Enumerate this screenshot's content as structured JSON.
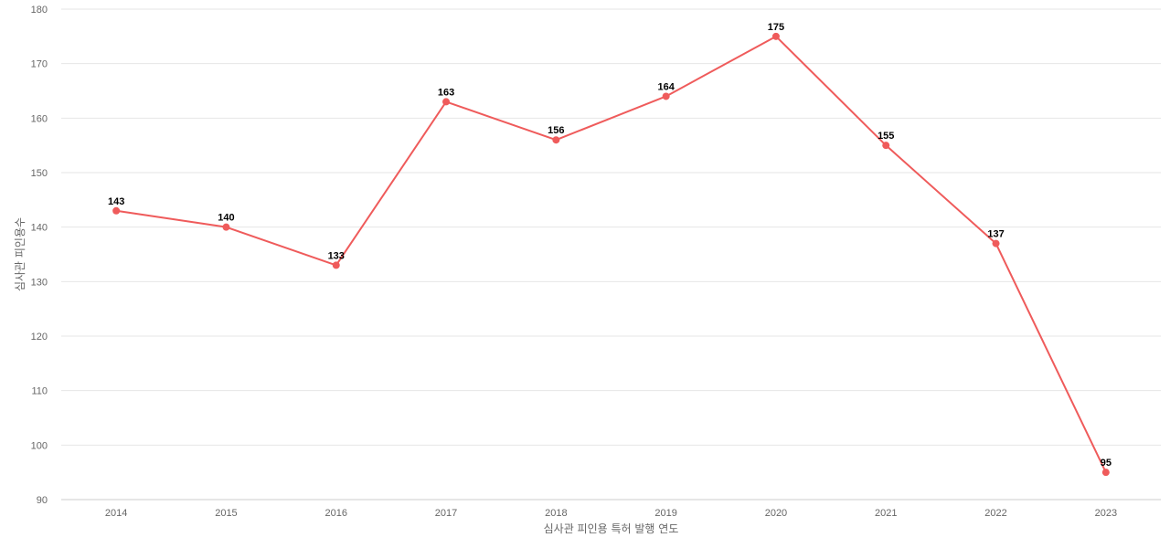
{
  "chart_data": {
    "type": "line",
    "categories": [
      "2014",
      "2015",
      "2016",
      "2017",
      "2018",
      "2019",
      "2020",
      "2021",
      "2022",
      "2023"
    ],
    "series": [
      {
        "values": [
          143,
          140,
          133,
          163,
          156,
          164,
          175,
          155,
          137,
          95
        ],
        "color": "#ef5b5b"
      }
    ],
    "xlabel": "심사관 피인용 특허 발행 연도",
    "ylabel": "심사관 피인용수",
    "ylim": [
      90,
      180
    ],
    "yticks": [
      90,
      100,
      110,
      120,
      130,
      140,
      150,
      160,
      170,
      180
    ],
    "grid": true,
    "data_labels": true
  }
}
